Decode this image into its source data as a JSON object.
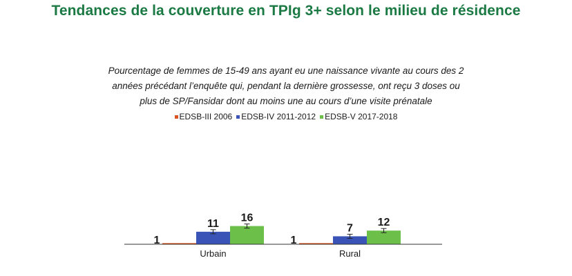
{
  "title": "Tendances de la couverture en TPIg 3+ selon le milieu de résidence",
  "subtitle_lines": [
    "Pourcentage de femmes de 15-49 ans ayant eu une naissance vivante au cours des 2",
    "années précédant l’enquête qui, pendant la dernière grossesse, ont reçu 3 doses ou",
    "plus de SP/Fansidar dont au moins une au cours d’une visite prénatale"
  ],
  "colors": {
    "title": "#1b7a43",
    "axis": "#333333",
    "label": "#1a1a1a"
  },
  "chart_data": {
    "type": "bar",
    "categories": [
      "Urbain",
      "Rural"
    ],
    "series": [
      {
        "name": "EDSB-III 2006",
        "color": "#d9541e",
        "values": [
          1,
          1
        ]
      },
      {
        "name": "EDSB-IV 2011-2012",
        "color": "#3a53b6",
        "values": [
          11,
          7
        ]
      },
      {
        "name": "EDSB-V 2017-2018",
        "color": "#6cc04a",
        "values": [
          16,
          12
        ]
      }
    ],
    "data_labels": [
      [
        "1",
        "1"
      ],
      [
        "11",
        "7"
      ],
      [
        "16",
        "12"
      ]
    ],
    "error_bars": true,
    "legend_position": "top-center",
    "grid": false,
    "ylim": [
      0,
      100
    ],
    "xlabel": "",
    "ylabel": ""
  }
}
